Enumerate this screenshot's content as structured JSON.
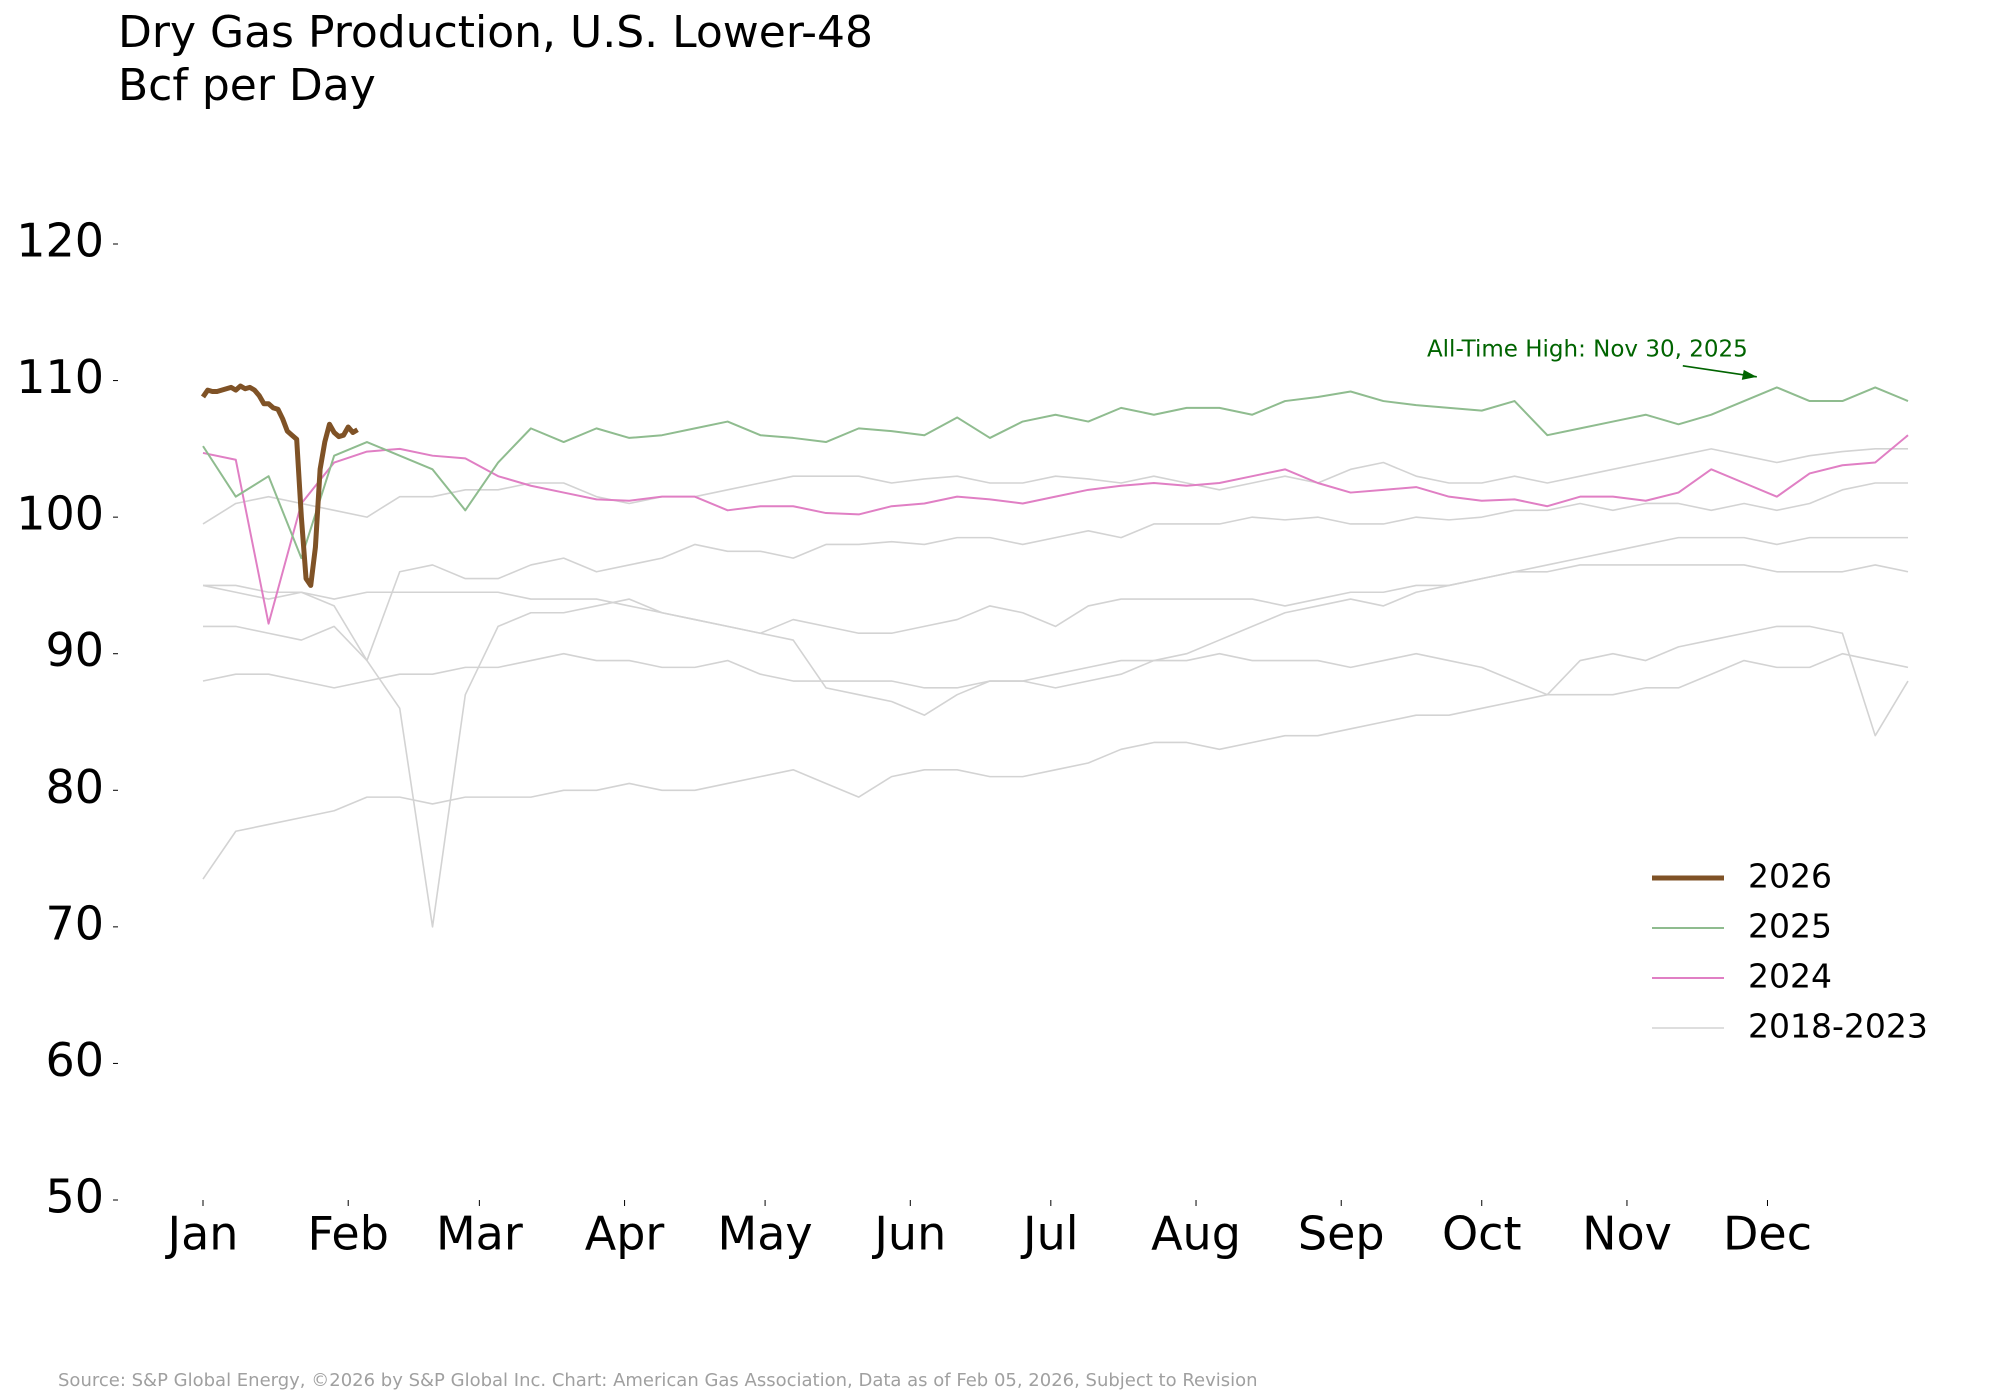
{
  "chart_data": {
    "type": "line",
    "title": "Dry Gas Production, U.S. Lower-48",
    "subtitle": "Bcf per Day",
    "footnote": "Source: S&P Global Energy, ©2026 by S&P Global Inc.  Chart: American Gas Association, Data as of Feb 05, 2026, Subject to Revision",
    "x": [
      1,
      8,
      15,
      22,
      29,
      36,
      43,
      50,
      57,
      64,
      71,
      78,
      85,
      92,
      99,
      106,
      113,
      120,
      127,
      134,
      141,
      148,
      155,
      162,
      169,
      176,
      183,
      190,
      197,
      204,
      211,
      218,
      225,
      232,
      239,
      246,
      253,
      260,
      267,
      274,
      281,
      288,
      295,
      302,
      309,
      316,
      323,
      330,
      337,
      344,
      351,
      358,
      365
    ],
    "xlim": [
      1,
      365
    ],
    "xticks": [
      {
        "value": 1,
        "label": "Jan"
      },
      {
        "value": 32,
        "label": "Feb"
      },
      {
        "value": 60,
        "label": "Mar"
      },
      {
        "value": 91,
        "label": "Apr"
      },
      {
        "value": 121,
        "label": "May"
      },
      {
        "value": 152,
        "label": "Jun"
      },
      {
        "value": 182,
        "label": "Jul"
      },
      {
        "value": 213,
        "label": "Aug"
      },
      {
        "value": 244,
        "label": "Sep"
      },
      {
        "value": 274,
        "label": "Oct"
      },
      {
        "value": 305,
        "label": "Nov"
      },
      {
        "value": 335,
        "label": "Dec"
      }
    ],
    "ylim": [
      50,
      120
    ],
    "yticks": [
      50,
      60,
      70,
      80,
      90,
      100,
      110,
      120
    ],
    "grid": false,
    "legend": "lower right",
    "annotation": {
      "text": "All-Time High: Nov 30, 2025",
      "x": 334,
      "y": 110.2,
      "color": "#006400"
    },
    "series": [
      {
        "name": "2026",
        "color": "#7f5226",
        "width": 5,
        "x": [
          1,
          2,
          3,
          4,
          5,
          6,
          7,
          8,
          9,
          10,
          11,
          12,
          13,
          14,
          15,
          16,
          17,
          18,
          19,
          20,
          21,
          22,
          23,
          24,
          25,
          26,
          27,
          28,
          29,
          30,
          31,
          32,
          33,
          34
        ],
        "values": [
          108.8,
          109.3,
          109.2,
          109.2,
          109.3,
          109.4,
          109.5,
          109.3,
          109.6,
          109.4,
          109.5,
          109.3,
          108.9,
          108.3,
          108.3,
          108.0,
          107.9,
          107.2,
          106.3,
          106.0,
          105.7,
          100.0,
          95.5,
          95.0,
          97.8,
          103.5,
          105.5,
          106.8,
          106.2,
          105.9,
          106.0,
          106.6,
          106.2,
          106.4
        ]
      },
      {
        "name": "2025",
        "color": "#8fbc8f",
        "width": 2,
        "values": [
          105.2,
          101.5,
          103,
          97,
          104.5,
          105.5,
          104.5,
          103.5,
          100.5,
          104,
          106.5,
          105.5,
          106.5,
          105.8,
          106,
          106.5,
          107,
          106,
          105.8,
          105.5,
          106.5,
          106.3,
          106,
          107.3,
          105.8,
          107,
          107.5,
          107,
          108,
          107.5,
          108,
          108,
          107.5,
          108.5,
          108.8,
          109.2,
          108.5,
          108.2,
          108,
          107.8,
          108.5,
          106,
          106.5,
          107,
          107.5,
          106.8,
          107.5,
          108.5,
          109.5,
          108.5,
          108.5,
          109.5,
          108.5
        ]
      },
      {
        "name": "2024",
        "color": "#e07fc4",
        "width": 2,
        "values": [
          104.7,
          104.2,
          92.2,
          101,
          104,
          104.8,
          105,
          104.5,
          104.3,
          103,
          102.3,
          101.8,
          101.3,
          101.2,
          101.5,
          101.5,
          100.5,
          100.8,
          100.8,
          100.3,
          100.2,
          100.8,
          101,
          101.5,
          101.3,
          101,
          101.5,
          102,
          102.3,
          102.5,
          102.3,
          102.5,
          103,
          103.5,
          102.5,
          101.8,
          102,
          102.2,
          101.5,
          101.2,
          101.3,
          100.8,
          101.5,
          101.5,
          101.2,
          101.8,
          103.5,
          102.5,
          101.5,
          103.2,
          103.8,
          104,
          106
        ]
      },
      {
        "name": "2018-2023",
        "color": "#d3d3d3",
        "width": 1.6,
        "lines": [
          {
            "values": [
              99.5,
              101,
              101.5,
              101,
              100.5,
              100,
              101.5,
              101.5,
              102,
              102,
              102.5,
              102.5,
              101.5,
              101,
              101.5,
              101.5,
              102,
              102.5,
              103,
              103,
              103,
              102.5,
              102.8,
              103,
              102.5,
              102.5,
              103,
              102.8,
              102.5,
              103,
              102.5,
              102,
              102.5,
              103,
              102.5,
              103.5,
              104,
              103,
              102.5,
              102.5,
              103,
              102.5,
              103,
              103.5,
              104,
              104.5,
              105,
              104.5,
              104,
              104.5,
              104.8,
              105,
              105
            ]
          },
          {
            "values": [
              95,
              94.5,
              94,
              94.5,
              93.5,
              89.5,
              96,
              96.5,
              95.5,
              95.5,
              96.5,
              97,
              96,
              96.5,
              97,
              98,
              97.5,
              97.5,
              97,
              98,
              98,
              98.2,
              98,
              98.5,
              98.5,
              98,
              98.5,
              99,
              98.5,
              99.5,
              99.5,
              99.5,
              100,
              99.8,
              100,
              99.5,
              99.5,
              100,
              99.8,
              100,
              100.5,
              100.5,
              101,
              100.5,
              101,
              101,
              100.5,
              101,
              100.5,
              101,
              102,
              102.5,
              102.5
            ]
          },
          {
            "values": [
              92,
              92,
              91.5,
              91,
              92,
              89.5,
              86,
              70,
              87,
              92,
              93,
              93,
              93.5,
              94,
              93,
              92.5,
              92,
              91.5,
              92.5,
              92,
              91.5,
              91.5,
              92,
              92.5,
              93.5,
              93,
              92,
              93.5,
              94,
              94,
              94,
              94,
              94,
              93.5,
              94,
              94.5,
              94.5,
              95,
              95,
              95.5,
              96,
              96,
              96.5,
              96.5,
              96.5,
              96.5,
              96.5,
              96.5,
              96,
              96,
              96,
              96.5,
              96
            ]
          },
          {
            "values": [
              95,
              95,
              94.5,
              94.5,
              94,
              94.5,
              94.5,
              94.5,
              94.5,
              94.5,
              94,
              94,
              94,
              93.5,
              93,
              92.5,
              92,
              91.5,
              91,
              87.5,
              87,
              86.5,
              85.5,
              87,
              88,
              88,
              87.5,
              88,
              88.5,
              89.5,
              90,
              91,
              92,
              93,
              93.5,
              94,
              93.5,
              94.5,
              95,
              95.5,
              96,
              96.5,
              97,
              97.5,
              98,
              98.5,
              98.5,
              98.5,
              98,
              98.5,
              98.5,
              98.5,
              98.5
            ]
          },
          {
            "values": [
              88,
              88.5,
              88.5,
              88,
              87.5,
              88,
              88.5,
              88.5,
              89,
              89,
              89.5,
              90,
              89.5,
              89.5,
              89,
              89,
              89.5,
              88.5,
              88,
              88,
              88,
              88,
              87.5,
              87.5,
              88,
              88,
              88.5,
              89,
              89.5,
              89.5,
              89.5,
              90,
              89.5,
              89.5,
              89.5,
              89,
              89.5,
              90,
              89.5,
              89,
              88,
              87,
              89.5,
              90,
              89.5,
              90.5,
              91,
              91.5,
              92,
              92,
              91.5,
              84,
              88
            ]
          },
          {
            "values": [
              73.5,
              77,
              77.5,
              78,
              78.5,
              79.5,
              79.5,
              79,
              79.5,
              79.5,
              79.5,
              80,
              80,
              80.5,
              80,
              80,
              80.5,
              81,
              81.5,
              80.5,
              79.5,
              81,
              81.5,
              81.5,
              81,
              81,
              81.5,
              82,
              83,
              83.5,
              83.5,
              83,
              83.5,
              84,
              84,
              84.5,
              85,
              85.5,
              85.5,
              86,
              86.5,
              87,
              87,
              87,
              87.5,
              87.5,
              88.5,
              89.5,
              89,
              89,
              90,
              89.5,
              89
            ]
          }
        ]
      }
    ]
  }
}
